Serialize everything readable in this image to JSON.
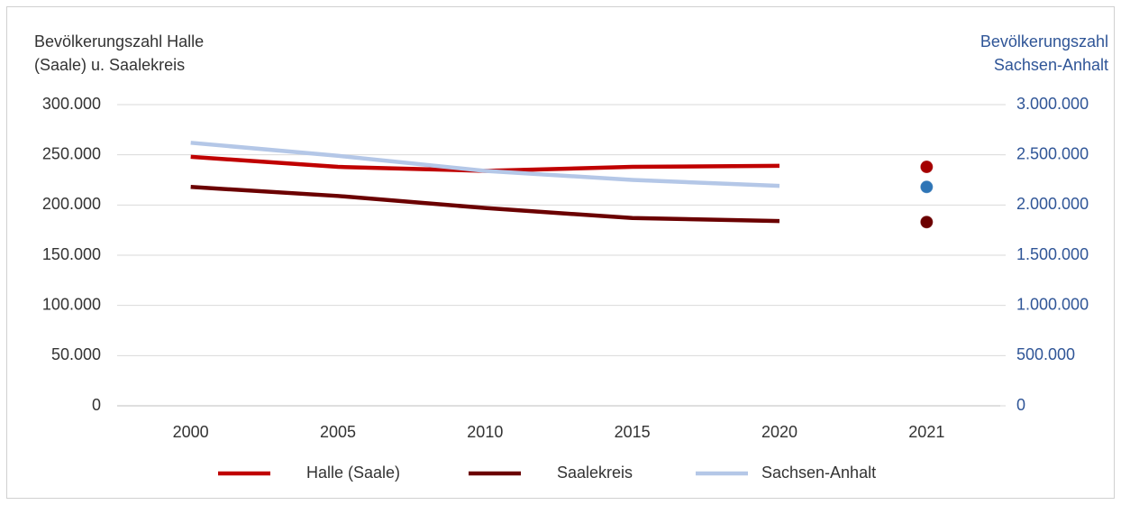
{
  "chart_data": {
    "type": "line",
    "y_label": "Bevölkerungszahl Halle (Saale) u. Saalekreis",
    "y2_label": "Bevölkerungszahl Sachsen-Anhalt",
    "categories": [
      "2000",
      "2005",
      "2010",
      "2015",
      "2020",
      "2021"
    ],
    "ylim": [
      0,
      300000
    ],
    "yticks": [
      0,
      {
        "value": 50000,
        "label": "50.000"
      },
      {
        "value": 100000,
        "label": "100.000"
      },
      {
        "value": 150000,
        "label": "150.000"
      },
      {
        "value": 200000,
        "label": "200.000"
      },
      {
        "value": 250000,
        "label": "250.000"
      },
      {
        "value": 300000,
        "label": "300.000"
      }
    ],
    "y2lim": [
      0,
      3000000
    ],
    "y2ticks": [
      0,
      {
        "value": 500000,
        "label": "500.000"
      },
      {
        "value": 1000000,
        "label": "1.000.000"
      },
      {
        "value": 1500000,
        "label": "1.500.000"
      },
      {
        "value": 2000000,
        "label": "2.000.000"
      },
      {
        "value": 2500000,
        "label": "2.500.000"
      },
      {
        "value": 3000000,
        "label": "3.000.000"
      }
    ],
    "grid": true,
    "legend": "bottom",
    "series": [
      {
        "name": "Halle (Saale)",
        "color": "#c00000",
        "values": [
          248000,
          238000,
          234000,
          238000,
          239000,
          null
        ]
      },
      {
        "name": "Saalekreis",
        "color": "#6b0000",
        "values": [
          218000,
          209000,
          197000,
          187000,
          184000,
          null
        ]
      },
      {
        "name": "Sachsen-Anhalt",
        "color": "#b4c7e7",
        "axis": "y2",
        "values": [
          2620000,
          2490000,
          2340000,
          2250000,
          2190000,
          null
        ]
      },
      {
        "type": "scatter",
        "color": "#a50000",
        "values": [
          null,
          null,
          null,
          null,
          null,
          238000
        ]
      },
      {
        "type": "scatter",
        "color": "#6b0000",
        "values": [
          null,
          null,
          null,
          null,
          null,
          183000
        ]
      },
      {
        "type": "scatter",
        "color": "#2e75b6",
        "axis": "y2",
        "values": [
          null,
          null,
          null,
          null,
          null,
          2180000
        ]
      }
    ]
  }
}
